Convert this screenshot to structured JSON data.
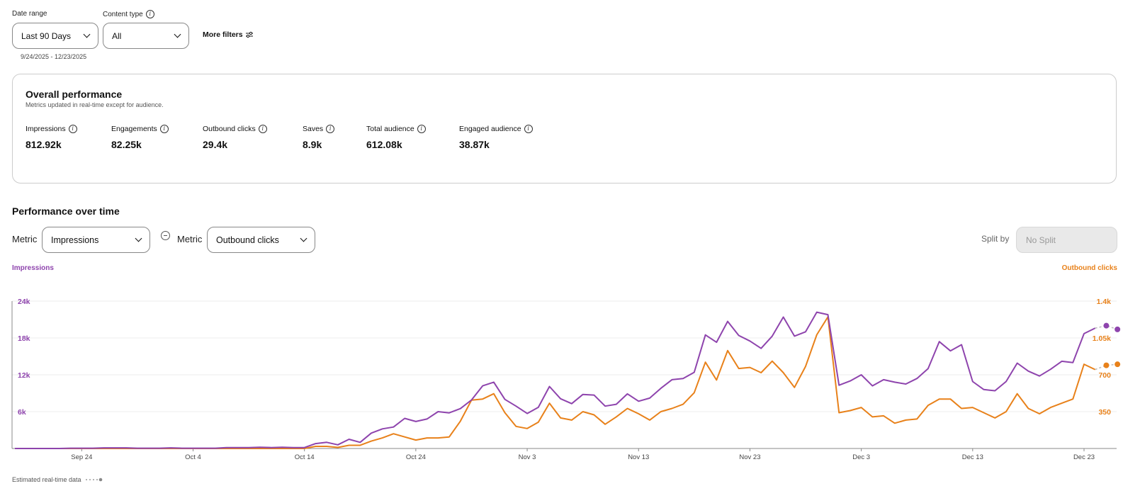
{
  "filters": {
    "date_range_label": "Date range",
    "date_range_value": "Last 90 Days",
    "date_range_sub": "9/24/2025 - 12/23/2025",
    "content_type_label": "Content type",
    "content_type_value": "All",
    "more_filters": "More filters"
  },
  "overall": {
    "title": "Overall performance",
    "subtitle": "Metrics updated in real-time except for audience.",
    "metrics": [
      {
        "label": "Impressions",
        "value": "812.92k"
      },
      {
        "label": "Engagements",
        "value": "82.25k"
      },
      {
        "label": "Outbound clicks",
        "value": "29.4k"
      },
      {
        "label": "Saves",
        "value": "8.9k"
      },
      {
        "label": "Total audience",
        "value": "612.08k"
      },
      {
        "label": "Engaged audience",
        "value": "38.87k"
      }
    ]
  },
  "perf": {
    "title": "Performance over time",
    "metric_label": "Metric",
    "metric1": "Impressions",
    "metric2": "Outbound clicks",
    "split_label": "Split by",
    "split_value": "No Split",
    "legend_left": "Impressions",
    "legend_right": "Outbound clicks",
    "footnote": "Estimated real-time data"
  },
  "colors": {
    "impressions": "#8e44ad",
    "outbound": "#e8811a"
  },
  "chart_data": {
    "type": "line",
    "x_ticks": [
      "Sep 24",
      "Oct 4",
      "Oct 14",
      "Oct 24",
      "Nov 3",
      "Nov 13",
      "Nov 23",
      "Dec 3",
      "Dec 13",
      "Dec 23"
    ],
    "y_left_ticks": [
      "24k",
      "18k",
      "12k",
      "6k"
    ],
    "y_right_ticks": [
      "1.4k",
      "1.05k",
      "700",
      "350"
    ],
    "y_left_range": [
      0,
      24000
    ],
    "y_right_range": [
      0,
      1400
    ],
    "start_date": "Sep 18",
    "series": [
      {
        "name": "Impressions",
        "axis": "left",
        "values": [
          0,
          0,
          0,
          0,
          0,
          50,
          50,
          50,
          100,
          100,
          100,
          50,
          50,
          50,
          100,
          50,
          50,
          50,
          50,
          150,
          150,
          150,
          200,
          150,
          200,
          150,
          150,
          800,
          1000,
          600,
          1500,
          1000,
          2500,
          3200,
          3500,
          4900,
          4400,
          4800,
          6000,
          5800,
          6500,
          7900,
          10200,
          10800,
          8000,
          6900,
          5700,
          6700,
          10100,
          8100,
          7300,
          8800,
          8700,
          6900,
          7200,
          8900,
          7700,
          8200,
          9800,
          11200,
          11400,
          12400,
          18500,
          17300,
          20700,
          18400,
          17500,
          16300,
          18300,
          21400,
          18300,
          19000,
          22200,
          21800,
          10300,
          11000,
          12000,
          10200,
          11200,
          10800,
          10500,
          11400,
          13000,
          17400,
          15900,
          16900,
          10900,
          9600,
          9400,
          10900,
          13900,
          12600,
          11800,
          12900,
          14200,
          14000,
          18700,
          19600
        ],
        "estimated": [
          20000,
          19400
        ]
      },
      {
        "name": "Outbound clicks",
        "axis": "right",
        "values": [
          0,
          0,
          0,
          0,
          0,
          0,
          0,
          0,
          0,
          0,
          0,
          0,
          0,
          0,
          0,
          0,
          0,
          0,
          0,
          0,
          0,
          0,
          0,
          0,
          0,
          0,
          0,
          20,
          20,
          10,
          30,
          30,
          70,
          100,
          140,
          110,
          80,
          100,
          100,
          110,
          260,
          460,
          470,
          520,
          340,
          210,
          190,
          250,
          430,
          290,
          270,
          350,
          320,
          230,
          300,
          380,
          330,
          270,
          350,
          380,
          420,
          530,
          820,
          650,
          930,
          760,
          770,
          720,
          830,
          720,
          580,
          780,
          1080,
          1250,
          340,
          360,
          390,
          300,
          310,
          240,
          270,
          280,
          410,
          470,
          470,
          380,
          390,
          340,
          290,
          350,
          520,
          380,
          330,
          390,
          430,
          470,
          800,
          750
        ],
        "estimated": [
          790,
          800
        ]
      }
    ]
  }
}
